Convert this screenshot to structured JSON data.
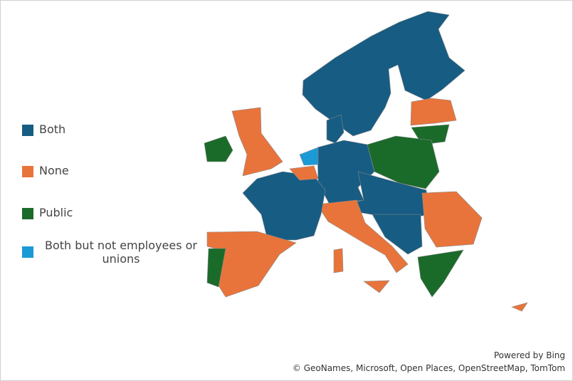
{
  "legend": [
    {
      "label": "Both",
      "color": "#175c83"
    },
    {
      "label": "None",
      "color": "#e8743b"
    },
    {
      "label": "Public",
      "color": "#1a6b2a"
    },
    {
      "label": "Both but not employees or unions",
      "color": "#1b9ad6"
    }
  ],
  "attribution": {
    "line1": "Powered by Bing",
    "line2": "© GeoNames, Microsoft, Open Places, OpenStreetMap, TomTom"
  }
}
